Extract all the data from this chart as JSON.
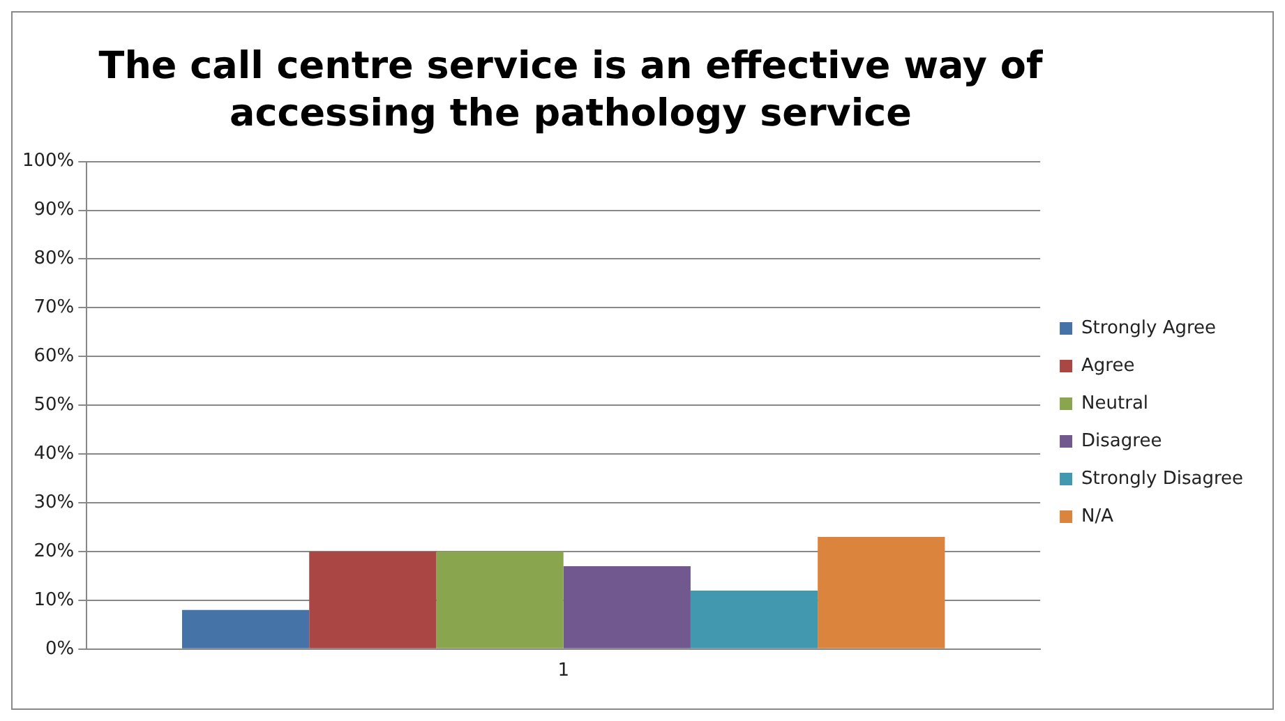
{
  "chart_data": {
    "type": "bar",
    "title": "The call centre service is an effective way of accessing the pathology service",
    "categories": [
      "1"
    ],
    "series": [
      {
        "name": "Strongly Agree",
        "color": "#4572a7",
        "values": [
          8
        ]
      },
      {
        "name": "Agree",
        "color": "#aa4643",
        "values": [
          20
        ]
      },
      {
        "name": "Neutral",
        "color": "#89a54e",
        "values": [
          20
        ]
      },
      {
        "name": "Disagree",
        "color": "#71588f",
        "values": [
          17
        ]
      },
      {
        "name": "Strongly Disagree",
        "color": "#4198af",
        "values": [
          12
        ]
      },
      {
        "name": "N/A",
        "color": "#db843d",
        "values": [
          23
        ]
      }
    ],
    "ylim": [
      0,
      100
    ],
    "yticks": [
      {
        "value": 0,
        "label": "0%"
      },
      {
        "value": 10,
        "label": "10%"
      },
      {
        "value": 20,
        "label": "20%"
      },
      {
        "value": 30,
        "label": "30%"
      },
      {
        "value": 40,
        "label": "40%"
      },
      {
        "value": 50,
        "label": "50%"
      },
      {
        "value": 60,
        "label": "60%"
      },
      {
        "value": 70,
        "label": "70%"
      },
      {
        "value": 80,
        "label": "80%"
      },
      {
        "value": 90,
        "label": "90%"
      },
      {
        "value": 100,
        "label": "100%"
      }
    ],
    "grid": "y",
    "legend": "right"
  }
}
